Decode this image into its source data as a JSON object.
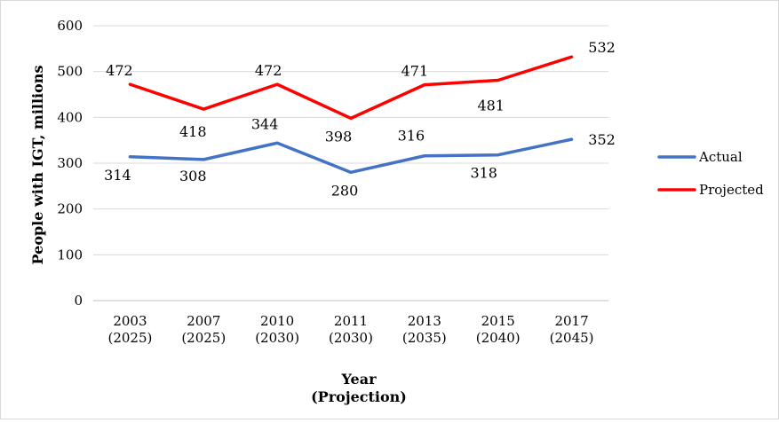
{
  "chart_data": {
    "type": "line",
    "x_categories": [
      [
        "2003",
        "(2025)"
      ],
      [
        "2007",
        "(2025)"
      ],
      [
        "2010",
        "(2030)"
      ],
      [
        "2011",
        "(2030)"
      ],
      [
        "2013",
        "(2035)"
      ],
      [
        "2015",
        "(2040)"
      ],
      [
        "2017",
        "(2045)"
      ]
    ],
    "xlabel": [
      "Year",
      "(Projection)"
    ],
    "ylabel": "People with IGT, millions",
    "ylim": [
      0,
      600
    ],
    "yticks": [
      0,
      100,
      200,
      300,
      400,
      500,
      600
    ],
    "grid": "horizontal",
    "legend_position": "right",
    "series": [
      {
        "name": "Actual",
        "color": "#4472c4",
        "values": [
          314,
          308,
          344,
          280,
          316,
          318,
          352
        ]
      },
      {
        "name": "Projected",
        "color": "#ff0000",
        "values": [
          472,
          418,
          472,
          398,
          471,
          481,
          532
        ]
      }
    ]
  }
}
